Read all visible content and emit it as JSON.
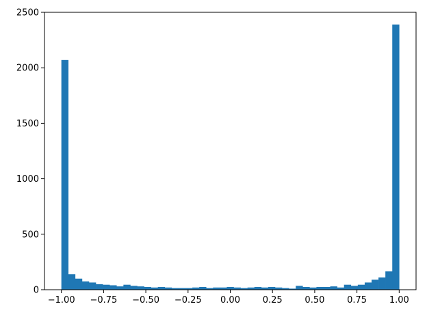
{
  "chart_data": {
    "type": "bar",
    "title": "",
    "xlabel": "",
    "ylabel": "",
    "xlim": [
      -1.1,
      1.1
    ],
    "ylim": [
      0,
      2500
    ],
    "grid": false,
    "bar_color": "#1f77b4",
    "bin_range": [
      -1.0,
      1.0
    ],
    "x_ticks": [
      -1.0,
      -0.75,
      -0.5,
      -0.25,
      0.0,
      0.25,
      0.5,
      0.75,
      1.0
    ],
    "x_tick_labels": [
      "−1.00",
      "−0.75",
      "−0.50",
      "−0.25",
      "0.00",
      "0.25",
      "0.50",
      "0.75",
      "1.00"
    ],
    "y_ticks": [
      0,
      500,
      1000,
      1500,
      2000,
      2500
    ],
    "y_tick_labels": [
      "0",
      "500",
      "1000",
      "1500",
      "2000",
      "2500"
    ],
    "values": [
      2070,
      140,
      100,
      75,
      65,
      50,
      45,
      40,
      30,
      45,
      35,
      30,
      25,
      20,
      25,
      20,
      15,
      15,
      15,
      20,
      25,
      15,
      20,
      20,
      25,
      20,
      15,
      20,
      25,
      20,
      25,
      20,
      15,
      10,
      35,
      25,
      20,
      25,
      25,
      30,
      20,
      45,
      35,
      45,
      65,
      90,
      110,
      165,
      2390
    ]
  }
}
